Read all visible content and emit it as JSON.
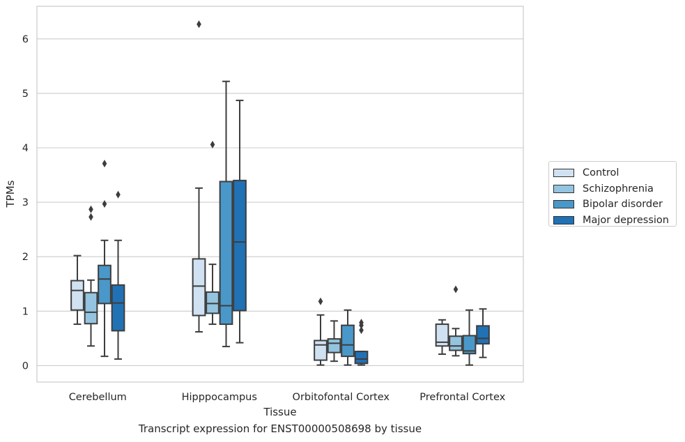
{
  "chart_data": {
    "type": "boxplot",
    "xlabel": "Tissue",
    "ylabel": "TPMs",
    "caption": "Transcript expression for ENST00000508698 by tissue",
    "categories": [
      "Cerebellum",
      "Hipppocampus",
      "Orbitofontal Cortex",
      "Prefrontal Cortex"
    ],
    "ylim": [
      -0.3,
      6.6
    ],
    "yticks": [
      0,
      1,
      2,
      3,
      4,
      5,
      6
    ],
    "grid": "horizontal",
    "legend_position": "right",
    "series": [
      {
        "name": "Control",
        "color": "#d0e1f2",
        "boxes": [
          {
            "whisker_low": 0.76,
            "q1": 1.02,
            "median": 1.38,
            "q3": 1.56,
            "whisker_high": 2.02,
            "outliers": []
          },
          {
            "whisker_low": 0.62,
            "q1": 0.92,
            "median": 1.46,
            "q3": 1.96,
            "whisker_high": 3.26,
            "outliers": [
              6.27
            ]
          },
          {
            "whisker_low": 0.01,
            "q1": 0.1,
            "median": 0.38,
            "q3": 0.46,
            "whisker_high": 0.93,
            "outliers": [
              1.18
            ]
          },
          {
            "whisker_low": 0.21,
            "q1": 0.36,
            "median": 0.43,
            "q3": 0.76,
            "whisker_high": 0.84,
            "outliers": []
          }
        ]
      },
      {
        "name": "Schizophrenia",
        "color": "#94c4df",
        "boxes": [
          {
            "whisker_low": 0.36,
            "q1": 0.77,
            "median": 0.98,
            "q3": 1.34,
            "whisker_high": 1.57,
            "outliers": [
              2.73,
              2.87
            ]
          },
          {
            "whisker_low": 0.76,
            "q1": 0.96,
            "median": 1.14,
            "q3": 1.35,
            "whisker_high": 1.86,
            "outliers": [
              4.06
            ]
          },
          {
            "whisker_low": 0.08,
            "q1": 0.24,
            "median": 0.41,
            "q3": 0.49,
            "whisker_high": 0.82,
            "outliers": []
          },
          {
            "whisker_low": 0.18,
            "q1": 0.28,
            "median": 0.36,
            "q3": 0.54,
            "whisker_high": 0.68,
            "outliers": [
              1.4
            ]
          }
        ]
      },
      {
        "name": "Bipolar disorder",
        "color": "#4a98c9",
        "boxes": [
          {
            "whisker_low": 0.17,
            "q1": 1.14,
            "median": 1.59,
            "q3": 1.84,
            "whisker_high": 2.3,
            "outliers": [
              2.97,
              3.71
            ]
          },
          {
            "whisker_low": 0.35,
            "q1": 0.76,
            "median": 1.1,
            "q3": 3.38,
            "whisker_high": 5.22,
            "outliers": []
          },
          {
            "whisker_low": 0.01,
            "q1": 0.17,
            "median": 0.38,
            "q3": 0.74,
            "whisker_high": 1.02,
            "outliers": []
          },
          {
            "whisker_low": 0.01,
            "q1": 0.22,
            "median": 0.27,
            "q3": 0.55,
            "whisker_high": 1.02,
            "outliers": []
          }
        ]
      },
      {
        "name": "Major depression",
        "color": "#2171b5",
        "boxes": [
          {
            "whisker_low": 0.12,
            "q1": 0.64,
            "median": 1.15,
            "q3": 1.48,
            "whisker_high": 2.3,
            "outliers": [
              3.14
            ]
          },
          {
            "whisker_low": 0.42,
            "q1": 1.01,
            "median": 2.27,
            "q3": 3.4,
            "whisker_high": 4.87,
            "outliers": []
          },
          {
            "whisker_low": 0.01,
            "q1": 0.04,
            "median": 0.12,
            "q3": 0.26,
            "whisker_high": 0.26,
            "outliers": [
              0.65,
              0.74,
              0.79
            ]
          },
          {
            "whisker_low": 0.15,
            "q1": 0.4,
            "median": 0.5,
            "q3": 0.73,
            "whisker_high": 1.04,
            "outliers": []
          }
        ]
      }
    ]
  }
}
